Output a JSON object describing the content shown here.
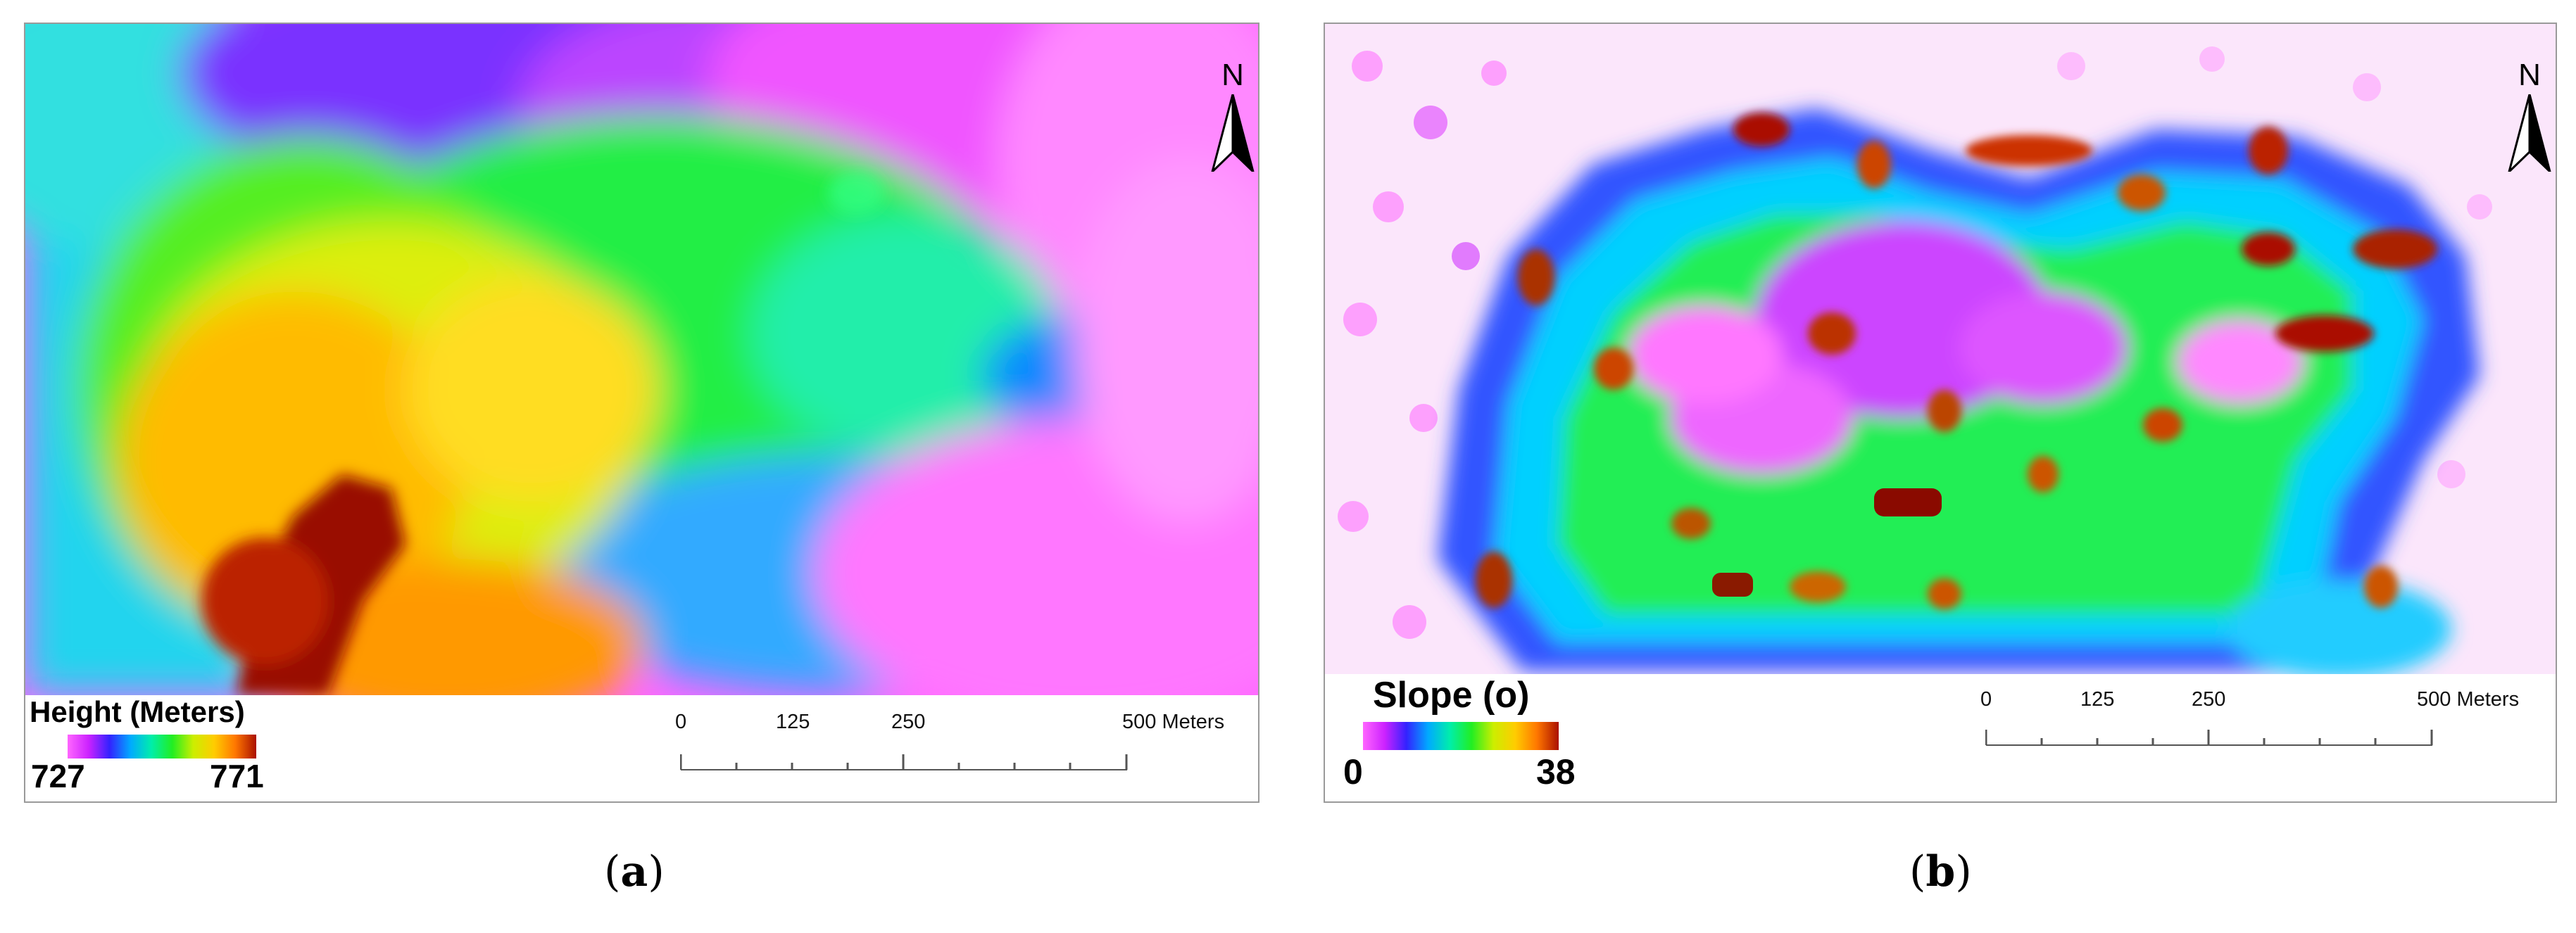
{
  "panels": [
    {
      "label_open": "(",
      "label_letter": "a",
      "label_close": ")",
      "legend": {
        "title": "Height (Meters)",
        "min": "727",
        "max": "771",
        "ramp_colors": [
          "#ff66ff",
          "#cc22ff",
          "#3322ff",
          "#00aaff",
          "#00eeaa",
          "#22ee22",
          "#ccee00",
          "#ffcc00",
          "#ff7700",
          "#aa1100"
        ]
      },
      "north_label": "N",
      "scale": {
        "labels": [
          "0",
          "125",
          "250",
          "500 Meters"
        ]
      }
    },
    {
      "label_open": "(",
      "label_letter": "b",
      "label_close": ")",
      "legend": {
        "title": "Slope (o)",
        "min": "0",
        "max": "38",
        "ramp_colors": [
          "#ff66ff",
          "#cc22ff",
          "#3322ff",
          "#00aaff",
          "#00eeaa",
          "#22ee22",
          "#ccee00",
          "#ffcc00",
          "#ff7700",
          "#aa1100"
        ]
      },
      "north_label": "N",
      "scale": {
        "labels": [
          "0",
          "125",
          "250",
          "500 Meters"
        ]
      }
    }
  ]
}
